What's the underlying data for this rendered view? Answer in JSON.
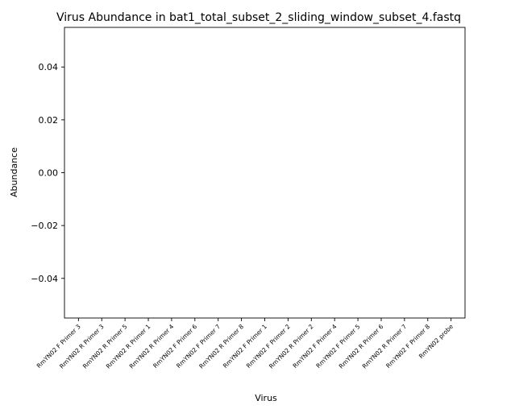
{
  "chart_data": {
    "type": "bar",
    "title": "Virus Abundance in bat1_total_subset_2_sliding_window_subset_4.fastq",
    "xlabel": "Virus",
    "ylabel": "Abundance",
    "ylim": [
      -0.055,
      0.055
    ],
    "yticks": [
      0.04,
      0.02,
      0.0,
      -0.02,
      -0.04
    ],
    "ytick_labels": [
      "0.04",
      "0.02",
      "0.00",
      "−0.02",
      "−0.04"
    ],
    "categories": [
      "RmYN02 F Primer 3",
      "RmYN02 R Primer 3",
      "RmYN02 R Primer 5",
      "RmYN02 R Primer 1",
      "RmYN02 R Primer 4",
      "RmYN02 F Primer 6",
      "RmYN02 F Primer 7",
      "RmYN02 R Primer 8",
      "RmYN02 F Primer 1",
      "RmYN02 F Primer 2",
      "RmYN02 R Primer 2",
      "RmYN02 F Primer 4",
      "RmYN02 F Primer 5",
      "RmYN02 R Primer 6",
      "RmYN02 R Primer 7",
      "RmYN02 F Primer 8",
      "RmYN02 probe"
    ],
    "values": [
      0,
      0,
      0,
      0,
      0,
      0,
      0,
      0,
      0,
      0,
      0,
      0,
      0,
      0,
      0,
      0,
      0
    ],
    "grid": false
  }
}
